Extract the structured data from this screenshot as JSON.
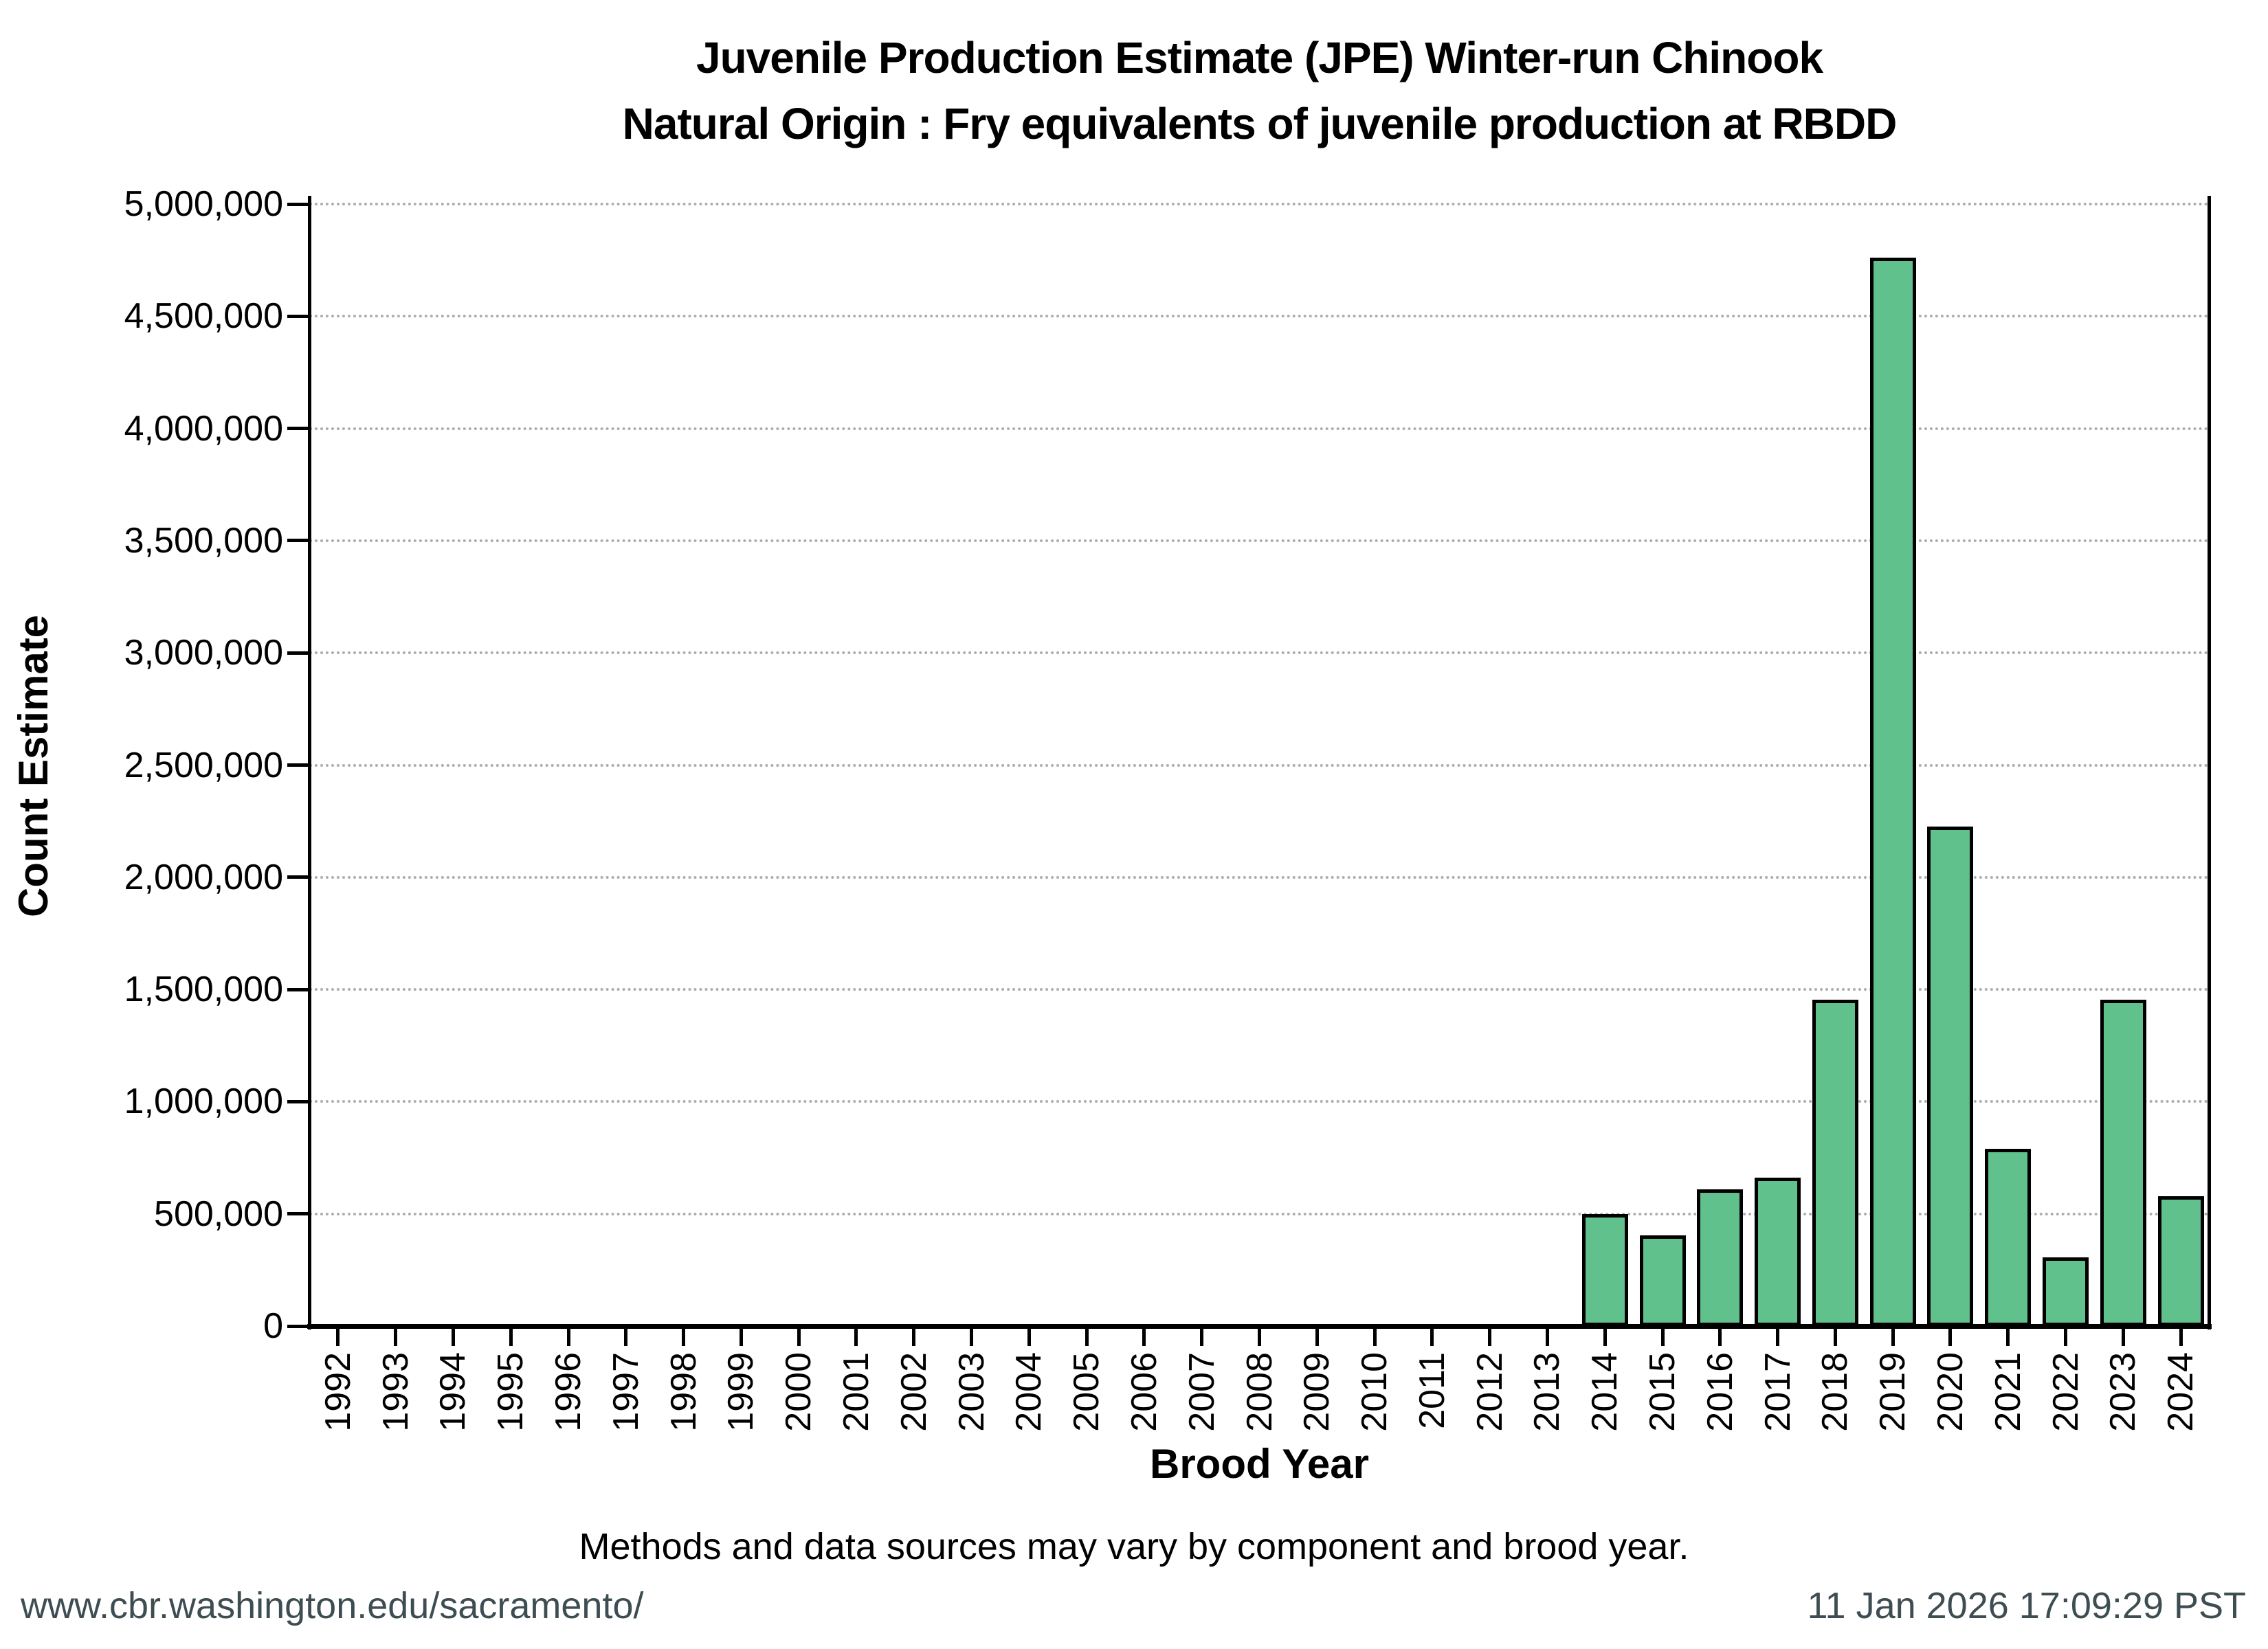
{
  "title": {
    "line1": "Juvenile Production Estimate (JPE) Winter-run Chinook",
    "line2": "Natural Origin : Fry equivalents of juvenile production at RBDD"
  },
  "y_axis": {
    "label": "Count Estimate",
    "ticks": [
      "0",
      "500,000",
      "1,000,000",
      "1,500,000",
      "2,000,000",
      "2,500,000",
      "3,000,000",
      "3,500,000",
      "4,000,000",
      "4,500,000",
      "5,000,000"
    ]
  },
  "x_axis": {
    "label": "Brood Year"
  },
  "note": "Methods and data sources may vary by component and brood year.",
  "footer": {
    "url": "www.cbr.washington.edu/sacramento/",
    "timestamp": "11 Jan 2026 17:09:29 PST"
  },
  "colors": {
    "bar_fill": "#61c18d",
    "bar_stroke": "#000000",
    "gridline": "#adadad",
    "footer_text": "#3d4d52",
    "text": "#000000"
  },
  "chart_data": {
    "type": "bar",
    "title": "Juvenile Production Estimate (JPE) Winter-run Chinook — Natural Origin : Fry equivalents of juvenile production at RBDD",
    "xlabel": "Brood Year",
    "ylabel": "Count Estimate",
    "categories": [
      "1992",
      "1993",
      "1994",
      "1995",
      "1996",
      "1997",
      "1998",
      "1999",
      "2000",
      "2001",
      "2002",
      "2003",
      "2004",
      "2005",
      "2006",
      "2007",
      "2008",
      "2009",
      "2010",
      "2011",
      "2012",
      "2013",
      "2014",
      "2015",
      "2016",
      "2017",
      "2018",
      "2019",
      "2020",
      "2021",
      "2022",
      "2023",
      "2024"
    ],
    "values": [
      null,
      null,
      null,
      null,
      null,
      null,
      null,
      null,
      null,
      null,
      null,
      null,
      null,
      null,
      null,
      null,
      null,
      null,
      null,
      null,
      null,
      null,
      500000,
      405000,
      610000,
      660000,
      1455000,
      4760000,
      2225000,
      790000,
      305000,
      1455000,
      580000
    ],
    "ylim": [
      0,
      5000000
    ],
    "ytick_interval": 500000,
    "grid": "horizontal-dotted",
    "legend_position": "none"
  }
}
